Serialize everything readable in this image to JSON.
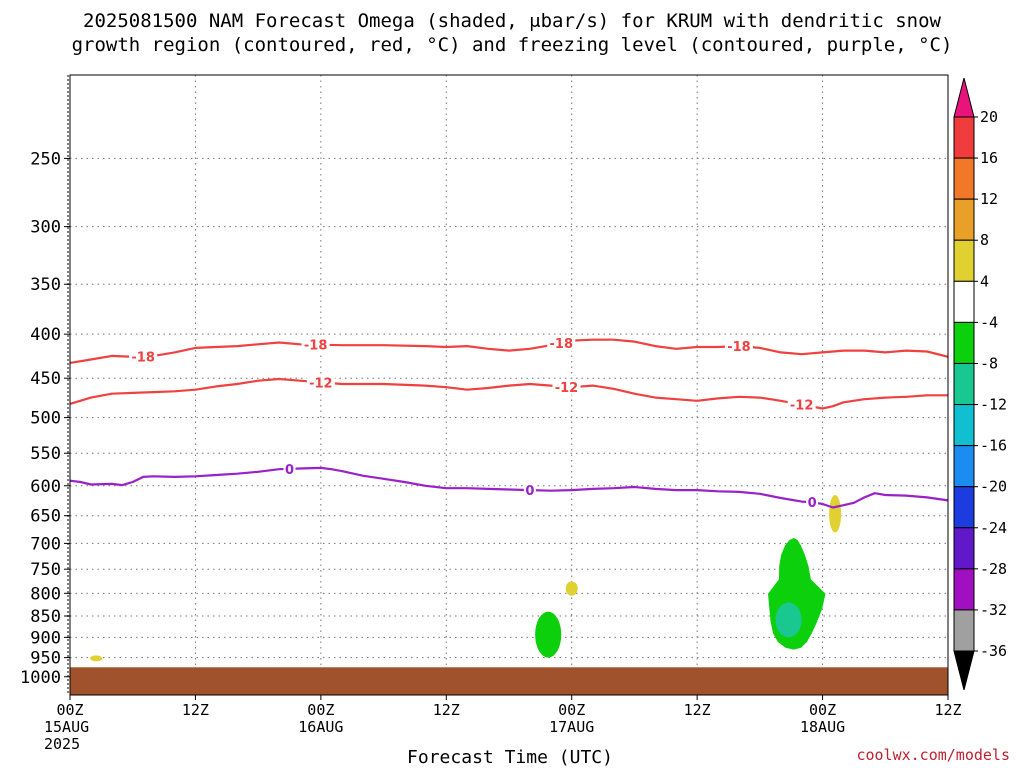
{
  "title": {
    "line1": "2025081500 NAM Forecast Omega (shaded, μbar/s) for KRUM with dendritic snow",
    "line2": "growth region (contoured, red, °C) and freezing level (contoured, purple, °C)"
  },
  "credit": "coolwx.com/models",
  "chart_data": {
    "type": "time-height cross section",
    "title": "2025081500 NAM Forecast Omega (shaded, μbar/s) for KRUM with dendritic snow growth region (contoured, red, °C) and freezing level (contoured, purple, °C)",
    "xlabel": "Forecast Time (UTC)",
    "ylabel": "",
    "x_range_hours": [
      0,
      84
    ],
    "y_range_hPa": [
      200,
      1050
    ],
    "y_scale": "log-pressure",
    "y_ticks": [
      250,
      300,
      350,
      400,
      450,
      500,
      550,
      600,
      650,
      700,
      750,
      800,
      850,
      900,
      950,
      1000
    ],
    "x_ticks": [
      {
        "hour": 0,
        "lines": [
          "00Z",
          "15AUG",
          "2025"
        ]
      },
      {
        "hour": 12,
        "lines": [
          "12Z"
        ]
      },
      {
        "hour": 24,
        "lines": [
          "00Z",
          "16AUG"
        ]
      },
      {
        "hour": 36,
        "lines": [
          "12Z"
        ]
      },
      {
        "hour": 48,
        "lines": [
          "00Z",
          "17AUG"
        ]
      },
      {
        "hour": 60,
        "lines": [
          "12Z"
        ]
      },
      {
        "hour": 72,
        "lines": [
          "00Z",
          "18AUG"
        ]
      },
      {
        "hour": 84,
        "lines": [
          "12Z"
        ]
      }
    ],
    "grid": "dotted",
    "colorbar": {
      "units": "μbar/s",
      "labels": [
        "20",
        "16",
        "12",
        "8",
        "4",
        "-4",
        "-8",
        "-12",
        "-16",
        "-20",
        "-24",
        "-28",
        "-32",
        "-36"
      ],
      "bins": [
        {
          "range": ">20",
          "color": "#e8147c"
        },
        {
          "range": "16 to 20",
          "color": "#f03c3c"
        },
        {
          "range": "12 to 16",
          "color": "#f07828"
        },
        {
          "range": "8 to 12",
          "color": "#e8a028"
        },
        {
          "range": "4 to 8",
          "color": "#e0d030"
        },
        {
          "range": "-4 to 4",
          "color": "#ffffff"
        },
        {
          "range": "-8 to -4",
          "color": "#0cd00c"
        },
        {
          "range": "-12 to -8",
          "color": "#18c890"
        },
        {
          "range": "-16 to -12",
          "color": "#10c0d0"
        },
        {
          "range": "-20 to -16",
          "color": "#1c8cf0"
        },
        {
          "range": "-24 to -20",
          "color": "#1c3ce0"
        },
        {
          "range": "-28 to -24",
          "color": "#6018c8"
        },
        {
          "range": "-32 to -28",
          "color": "#a010c0"
        },
        {
          "range": "-36 to -32",
          "color": "#a0a0a0"
        },
        {
          "range": "<-36",
          "color": "#000000"
        }
      ]
    },
    "contours": [
      {
        "name": "-18",
        "label": "-18",
        "color": "#f04040",
        "points": [
          [
            0,
            432
          ],
          [
            2,
            428
          ],
          [
            4,
            424
          ],
          [
            6,
            425
          ],
          [
            8,
            424
          ],
          [
            10,
            420
          ],
          [
            12,
            415
          ],
          [
            14,
            414
          ],
          [
            16,
            413
          ],
          [
            18,
            411
          ],
          [
            20,
            409
          ],
          [
            22,
            411
          ],
          [
            26,
            412
          ],
          [
            30,
            412
          ],
          [
            34,
            413
          ],
          [
            36,
            414
          ],
          [
            38,
            413
          ],
          [
            40,
            416
          ],
          [
            42,
            418
          ],
          [
            44,
            416
          ],
          [
            46,
            412
          ],
          [
            48,
            407
          ],
          [
            50,
            406
          ],
          [
            52,
            406
          ],
          [
            54,
            408
          ],
          [
            56,
            413
          ],
          [
            58,
            416
          ],
          [
            60,
            414
          ],
          [
            62,
            414
          ],
          [
            64,
            413
          ],
          [
            66,
            415
          ],
          [
            68,
            420
          ],
          [
            70,
            422
          ],
          [
            72,
            420
          ],
          [
            74,
            418
          ],
          [
            76,
            418
          ],
          [
            78,
            420
          ],
          [
            80,
            418
          ],
          [
            82,
            419
          ],
          [
            84,
            425
          ]
        ],
        "label_positions": [
          7,
          23.5,
          47,
          64
        ]
      },
      {
        "name": "-12",
        "label": "-12",
        "color": "#f04040",
        "points": [
          [
            0,
            482
          ],
          [
            2,
            474
          ],
          [
            4,
            469
          ],
          [
            6,
            468
          ],
          [
            8,
            467
          ],
          [
            10,
            466
          ],
          [
            12,
            464
          ],
          [
            14,
            460
          ],
          [
            16,
            457
          ],
          [
            18,
            453
          ],
          [
            20,
            451
          ],
          [
            22,
            453
          ],
          [
            24,
            455
          ],
          [
            26,
            457
          ],
          [
            30,
            457
          ],
          [
            34,
            459
          ],
          [
            36,
            461
          ],
          [
            38,
            464
          ],
          [
            40,
            462
          ],
          [
            42,
            459
          ],
          [
            44,
            457
          ],
          [
            46,
            459
          ],
          [
            48,
            461
          ],
          [
            50,
            459
          ],
          [
            52,
            463
          ],
          [
            54,
            469
          ],
          [
            56,
            474
          ],
          [
            58,
            476
          ],
          [
            60,
            478
          ],
          [
            62,
            475
          ],
          [
            64,
            473
          ],
          [
            66,
            474
          ],
          [
            68,
            478
          ],
          [
            70,
            483
          ],
          [
            72,
            488
          ],
          [
            73,
            485
          ],
          [
            74,
            480
          ],
          [
            76,
            476
          ],
          [
            78,
            474
          ],
          [
            80,
            473
          ],
          [
            82,
            471
          ],
          [
            84,
            471
          ]
        ],
        "label_positions": [
          24,
          47.5,
          70
        ]
      },
      {
        "name": "0",
        "label": "0",
        "color": "#9a20c8",
        "points": [
          [
            0,
            592
          ],
          [
            1,
            594
          ],
          [
            2,
            598
          ],
          [
            4,
            597
          ],
          [
            5,
            599
          ],
          [
            6,
            594
          ],
          [
            7,
            586
          ],
          [
            8,
            585
          ],
          [
            10,
            586
          ],
          [
            12,
            585
          ],
          [
            14,
            583
          ],
          [
            16,
            581
          ],
          [
            18,
            578
          ],
          [
            20,
            574
          ],
          [
            22,
            573
          ],
          [
            24,
            572
          ],
          [
            25,
            574
          ],
          [
            26,
            577
          ],
          [
            28,
            584
          ],
          [
            30,
            589
          ],
          [
            32,
            594
          ],
          [
            34,
            600
          ],
          [
            36,
            604
          ],
          [
            38,
            604
          ],
          [
            40,
            605
          ],
          [
            42,
            606
          ],
          [
            44,
            607
          ],
          [
            46,
            608
          ],
          [
            48,
            607
          ],
          [
            50,
            605
          ],
          [
            52,
            604
          ],
          [
            54,
            602
          ],
          [
            56,
            605
          ],
          [
            58,
            607
          ],
          [
            60,
            607
          ],
          [
            62,
            609
          ],
          [
            64,
            610
          ],
          [
            66,
            613
          ],
          [
            68,
            620
          ],
          [
            70,
            626
          ],
          [
            71,
            627
          ],
          [
            72,
            630
          ],
          [
            73,
            636
          ],
          [
            74,
            632
          ],
          [
            75,
            628
          ],
          [
            76,
            619
          ],
          [
            77,
            612
          ],
          [
            78,
            615
          ],
          [
            80,
            616
          ],
          [
            82,
            619
          ],
          [
            84,
            624
          ]
        ],
        "label_positions": [
          21,
          44,
          71
        ]
      }
    ],
    "omega_shaded_regions": [
      {
        "bin": "4 to 8",
        "hour": 2.5,
        "pressure_range": [
          948,
          956
        ]
      },
      {
        "bin": "4 to 8",
        "hour": 48,
        "pressure_range": [
          775,
          805
        ]
      },
      {
        "bin": "4 to 8",
        "hour": 73.2,
        "pressure_range": [
          615,
          680
        ]
      },
      {
        "bin": "-8 to -4",
        "hour_range": [
          44.5,
          47
        ],
        "pressure_range": [
          840,
          950
        ]
      },
      {
        "bin": "-8 to -4",
        "hour_range": [
          66.5,
          72
        ],
        "pressure_range": [
          690,
          930
        ]
      },
      {
        "bin": "-12 to -8",
        "hour_range": [
          67.5,
          70
        ],
        "pressure_range": [
          820,
          900
        ]
      }
    ],
    "terrain": {
      "color": "#a0522d",
      "pressure_top": 975
    }
  }
}
